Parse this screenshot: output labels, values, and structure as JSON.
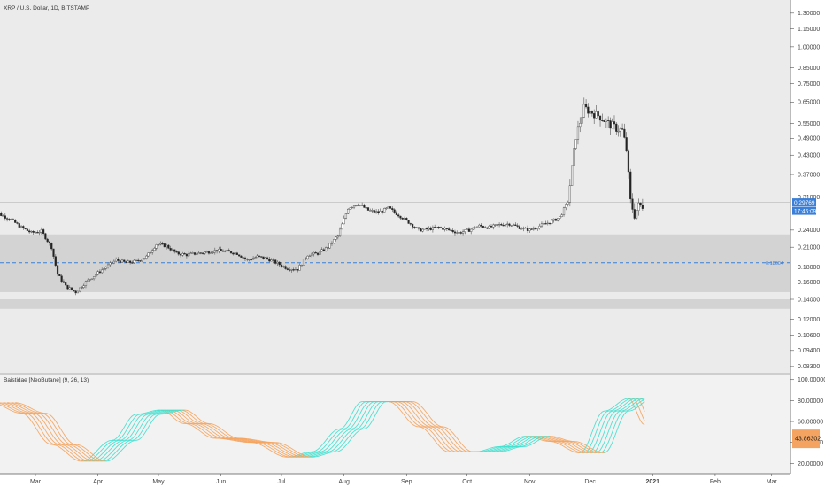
{
  "chart_data": [
    {
      "type": "candlestick",
      "title": "XRP / U.S. Dollar, 1D, BITSTAMP",
      "y_scale": "log",
      "ylim": [
        0.079,
        1.42
      ],
      "y_ticks": [
        "1.30000",
        "1.15000",
        "1.00000",
        "0.85000",
        "0.75000",
        "0.65000",
        "0.55000",
        "0.49000",
        "0.43000",
        "0.37000",
        "0.31000",
        "0.24000",
        "0.21000",
        "0.18000",
        "0.16000",
        "0.14000",
        "0.12000",
        "0.10600",
        "0.09400",
        "0.08300"
      ],
      "x_ticks": [
        "Mar",
        "Apr",
        "May",
        "Jun",
        "Jul",
        "Aug",
        "Sep",
        "Oct",
        "Nov",
        "Dec",
        "2021",
        "Feb",
        "Mar"
      ],
      "price_tag": "0.29769",
      "countdown_tag": "17:46:09",
      "support_line": 0.186,
      "support_line_label": "0.18604",
      "zones": [
        {
          "from": 0.148,
          "to": 0.232,
          "color": "#d3d3d3"
        },
        {
          "from": 0.13,
          "to": 0.14,
          "color": "#d3d3d3"
        }
      ],
      "x_dates": [
        "2020-02-08",
        "2020-02-13",
        "2020-02-18",
        "2020-02-23",
        "2020-02-28",
        "2020-03-04",
        "2020-03-09",
        "2020-03-12",
        "2020-03-16",
        "2020-03-21",
        "2020-03-26",
        "2020-03-31",
        "2020-04-05",
        "2020-04-10",
        "2020-04-15",
        "2020-04-20",
        "2020-04-25",
        "2020-04-30",
        "2020-05-05",
        "2020-05-10",
        "2020-05-15",
        "2020-05-20",
        "2020-05-25",
        "2020-05-30",
        "2020-06-04",
        "2020-06-09",
        "2020-06-14",
        "2020-06-19",
        "2020-06-24",
        "2020-06-29",
        "2020-07-04",
        "2020-07-09",
        "2020-07-14",
        "2020-07-19",
        "2020-07-24",
        "2020-07-29",
        "2020-08-03",
        "2020-08-08",
        "2020-08-13",
        "2020-08-18",
        "2020-08-23",
        "2020-08-28",
        "2020-09-02",
        "2020-09-07",
        "2020-09-12",
        "2020-09-17",
        "2020-09-22",
        "2020-09-27",
        "2020-10-02",
        "2020-10-07",
        "2020-10-12",
        "2020-10-17",
        "2020-10-22",
        "2020-10-27",
        "2020-11-01",
        "2020-11-06",
        "2020-11-11",
        "2020-11-16",
        "2020-11-20",
        "2020-11-24",
        "2020-11-28",
        "2020-12-02",
        "2020-12-06",
        "2020-12-10",
        "2020-12-14",
        "2020-12-17",
        "2020-12-19",
        "2020-12-21",
        "2020-12-23",
        "2020-12-25",
        "2020-12-27"
      ],
      "close": [
        0.285,
        0.27,
        0.26,
        0.245,
        0.235,
        0.238,
        0.21,
        0.17,
        0.155,
        0.148,
        0.16,
        0.17,
        0.18,
        0.19,
        0.186,
        0.188,
        0.195,
        0.215,
        0.212,
        0.2,
        0.198,
        0.2,
        0.202,
        0.205,
        0.203,
        0.2,
        0.19,
        0.195,
        0.192,
        0.185,
        0.178,
        0.177,
        0.198,
        0.2,
        0.21,
        0.23,
        0.285,
        0.295,
        0.28,
        0.275,
        0.285,
        0.27,
        0.255,
        0.24,
        0.242,
        0.245,
        0.24,
        0.235,
        0.24,
        0.248,
        0.245,
        0.25,
        0.252,
        0.245,
        0.24,
        0.248,
        0.255,
        0.265,
        0.3,
        0.5,
        0.62,
        0.6,
        0.58,
        0.55,
        0.53,
        0.52,
        0.45,
        0.3,
        0.27,
        0.29,
        0.29
      ]
    },
    {
      "type": "area",
      "title": "Baistidae [NeoButane] (9, 26, 13)",
      "ylim": [
        11,
        104
      ],
      "y_ticks": [
        "100.00000",
        "80.00000",
        "60.00000",
        "40.00000",
        "20.00000"
      ],
      "value_tag": "43.86302",
      "x_dates": [
        "2020-02-08",
        "2020-02-23",
        "2020-03-09",
        "2020-03-24",
        "2020-04-08",
        "2020-04-20",
        "2020-05-02",
        "2020-05-14",
        "2020-05-29",
        "2020-06-16",
        "2020-07-04",
        "2020-07-16",
        "2020-07-30",
        "2020-08-10",
        "2020-08-23",
        "2020-09-07",
        "2020-09-22",
        "2020-10-05",
        "2020-10-17",
        "2020-10-30",
        "2020-11-11",
        "2020-11-26",
        "2020-12-08",
        "2020-12-20",
        "2020-12-28"
      ],
      "values": [
        78,
        68,
        38,
        22,
        42,
        67,
        71,
        58,
        44,
        40,
        26,
        31,
        53,
        79,
        79,
        55,
        31,
        31,
        36,
        46,
        41,
        30,
        70,
        82,
        57
      ],
      "rising_color": "#40e0d0",
      "falling_color": "#f4a460"
    }
  ]
}
